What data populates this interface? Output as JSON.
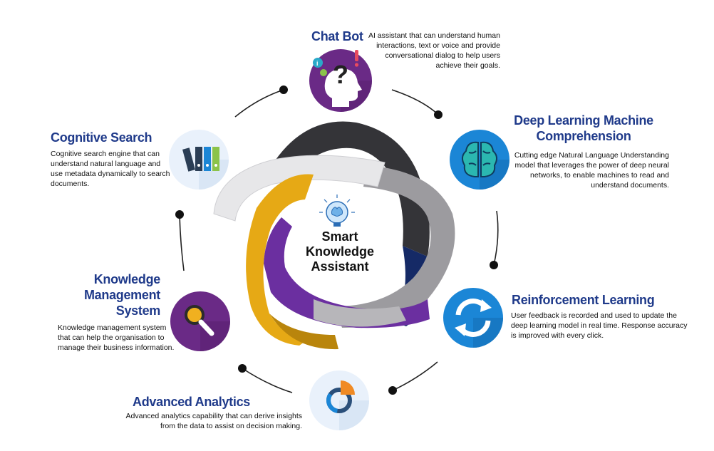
{
  "center": {
    "title_lines": [
      "Smart",
      "Knowledge",
      "Assistant"
    ]
  },
  "items": {
    "chat_bot": {
      "title": "Chat Bot",
      "desc_lines": [
        "AI assistant that can understand human",
        "interactions, text or voice and provide",
        "conversational dialog to help users",
        "achieve their goals."
      ],
      "icon": "head-question-icon",
      "color": "#6a2a86"
    },
    "deep_learning": {
      "title_lines": [
        "Deep Learning Machine",
        "Comprehension"
      ],
      "desc_lines": [
        "Cutting edge Natural Language Understanding",
        "model that leverages the power of deep neural",
        "networks, to enable machines to read and",
        "understand documents."
      ],
      "icon": "brain-icon",
      "color": "#1b86d6"
    },
    "reinforcement": {
      "title": "Reinforcement Learning",
      "desc_lines": [
        "User feedback is recorded and used to update the",
        "deep learning model in real time. Response accuracy",
        "is improved with every click."
      ],
      "icon": "refresh-cycle-icon",
      "color": "#1b86d6"
    },
    "advanced_analytics": {
      "title": "Advanced Analytics",
      "desc_lines": [
        "Advanced analytics capability that can derive insights",
        "from the data to assist on decision making."
      ],
      "icon": "donut-chart-icon",
      "color": "#e9f1fb"
    },
    "knowledge_management": {
      "title_lines": [
        "Knowledge",
        "Management",
        "System"
      ],
      "desc_lines": [
        "Knowledge management system",
        "that can help the organisation to",
        "manage their business information."
      ],
      "icon": "magnifier-icon",
      "color": "#6a2a86"
    },
    "cognitive_search": {
      "title": "Cognitive Search",
      "desc_lines": [
        "Cognitive search engine that can",
        "understand natural language and",
        "use metadata dynamically to search",
        "documents."
      ],
      "icon": "binders-icon",
      "color": "#e9f1fb"
    }
  }
}
